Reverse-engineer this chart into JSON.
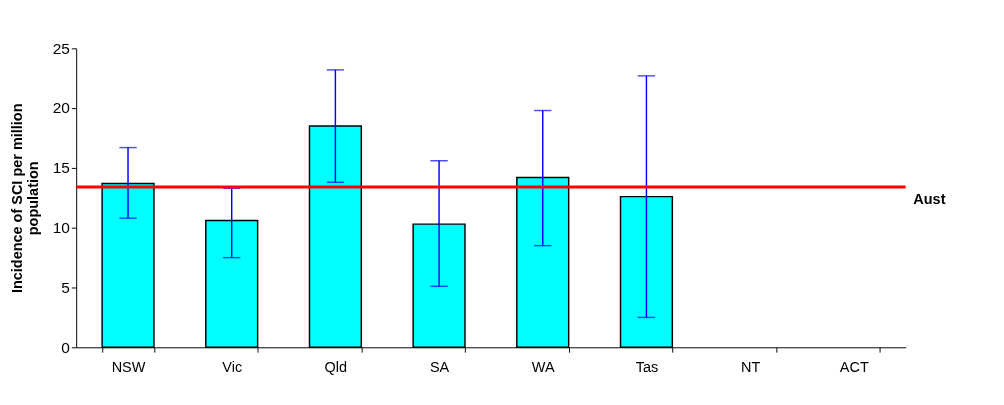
{
  "chart_data": {
    "type": "bar",
    "ylabel": "Incidence of SCI per million population",
    "categories": [
      "NSW",
      "Vic",
      "Qld",
      "SA",
      "WA",
      "Tas",
      "NT",
      "ACT"
    ],
    "values": [
      13.7,
      10.6,
      18.5,
      10.3,
      14.2,
      12.6,
      null,
      null
    ],
    "color": "#00ffff",
    "errors": [
      [
        10.8,
        16.7
      ],
      [
        7.5,
        13.3
      ],
      [
        13.8,
        23.2
      ],
      [
        5.1,
        15.6
      ],
      [
        8.5,
        19.8
      ],
      [
        2.5,
        22.7
      ],
      null,
      null
    ],
    "ylim": [
      0,
      25
    ],
    "yticks": [
      0,
      5,
      10,
      15,
      20,
      25
    ],
    "ref_lines": [
      {
        "axis": "y",
        "value": 13.4,
        "label": "Aust",
        "color": "#ff0000"
      }
    ],
    "grid": false
  }
}
